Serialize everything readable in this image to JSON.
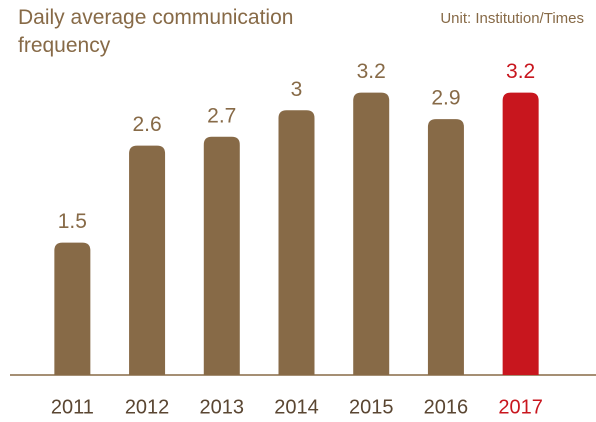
{
  "chart_data": {
    "type": "bar",
    "title": "Daily average communication frequency",
    "subtitle": "Unit: Institution/Times",
    "categories": [
      "2011",
      "2012",
      "2013",
      "2014",
      "2015",
      "2016",
      "2017"
    ],
    "values": [
      1.5,
      2.6,
      2.7,
      3,
      3.2,
      2.9,
      3.2
    ],
    "color": "#876a47",
    "colors": [
      "#876a47",
      "#876a47",
      "#876a47",
      "#876a47",
      "#876a47",
      "#876a47",
      "#c8161e"
    ],
    "ylim": [
      0,
      3.4
    ]
  }
}
